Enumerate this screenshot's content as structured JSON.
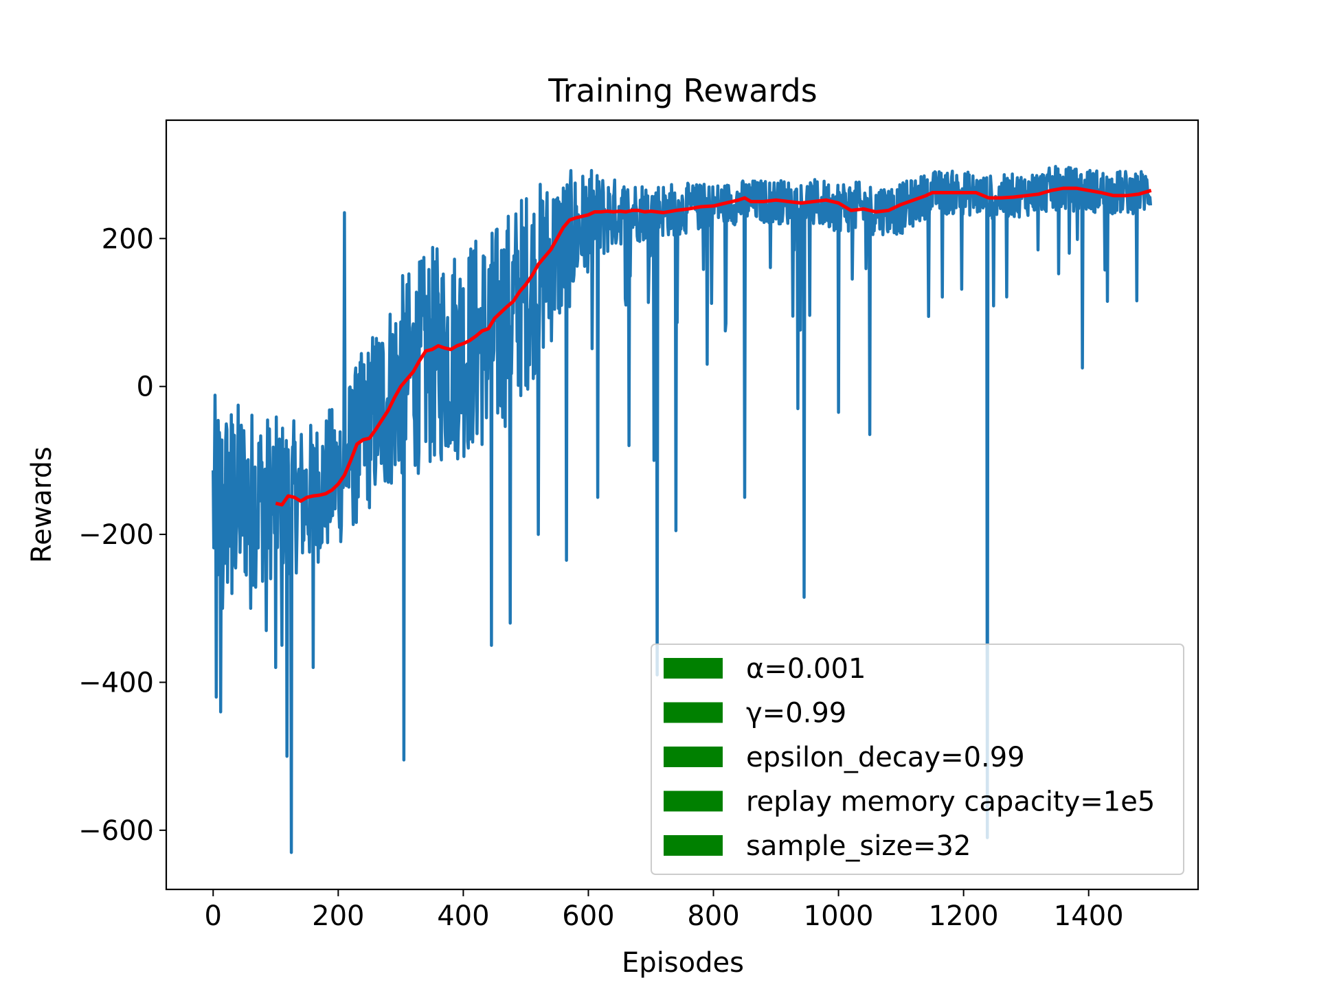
{
  "chart_data": {
    "type": "line",
    "title": "Training Rewards",
    "xlabel": "Episodes",
    "ylabel": "Rewards",
    "xlim": [
      -75,
      1575
    ],
    "ylim": [
      -680,
      360
    ],
    "xticks": [
      0,
      200,
      400,
      600,
      800,
      1000,
      1200,
      1400
    ],
    "yticks": [
      -600,
      -400,
      -200,
      0,
      200
    ],
    "ytick_labels": [
      "−600",
      "−400",
      "−200",
      "0",
      "200"
    ],
    "grid": false,
    "legend": {
      "placement": "lower-right",
      "entries": [
        {
          "label": "α=0.001",
          "color": "#008000"
        },
        {
          "label": "γ=0.99",
          "color": "#008000"
        },
        {
          "label": "epsilon_decay=0.99",
          "color": "#008000"
        },
        {
          "label": "replay memory capacity=1e5",
          "color": "#008000"
        },
        {
          "label": "sample_size=32",
          "color": "#008000"
        }
      ]
    },
    "series": [
      {
        "role": "raw episode rewards",
        "color": "#1f77b4",
        "episodes": 1500,
        "trend_x": [
          0,
          50,
          100,
          150,
          200,
          250,
          300,
          350,
          400,
          450,
          500,
          550,
          600,
          650,
          700,
          750,
          800,
          850,
          900,
          950,
          1000,
          1050,
          1100,
          1150,
          1200,
          1250,
          1300,
          1350,
          1400,
          1450,
          1500
        ],
        "trend_y": [
          -160,
          -150,
          -150,
          -150,
          -120,
          -50,
          10,
          40,
          50,
          70,
          130,
          180,
          225,
          235,
          238,
          240,
          245,
          250,
          250,
          248,
          245,
          240,
          240,
          262,
          262,
          255,
          260,
          268,
          265,
          262,
          265
        ],
        "spread": [
          150,
          130,
          110,
          100,
          100,
          120,
          140,
          150,
          150,
          150,
          140,
          110,
          70,
          45,
          40,
          35,
          30,
          30,
          30,
          32,
          35,
          35,
          35,
          30,
          30,
          30,
          30,
          30,
          30,
          30,
          30
        ],
        "outliers": [
          [
            5,
            -420
          ],
          [
            12,
            -440
          ],
          [
            15,
            -300
          ],
          [
            30,
            -280
          ],
          [
            60,
            -300
          ],
          [
            85,
            -330
          ],
          [
            100,
            -380
          ],
          [
            110,
            -350
          ],
          [
            118,
            -500
          ],
          [
            125,
            -630
          ],
          [
            160,
            -380
          ],
          [
            210,
            235
          ],
          [
            305,
            -505
          ],
          [
            445,
            -350
          ],
          [
            475,
            -320
          ],
          [
            520,
            -200
          ],
          [
            565,
            -235
          ],
          [
            615,
            -150
          ],
          [
            665,
            -80
          ],
          [
            705,
            -100
          ],
          [
            710,
            -390
          ],
          [
            740,
            -195
          ],
          [
            790,
            30
          ],
          [
            850,
            -150
          ],
          [
            935,
            -30
          ],
          [
            945,
            -285
          ],
          [
            1000,
            -35
          ],
          [
            1050,
            -65
          ],
          [
            1238,
            -610
          ],
          [
            1390,
            25
          ],
          [
            1430,
            115
          ]
        ]
      },
      {
        "role": "moving average",
        "color": "#ff0000",
        "x": [
          100,
          110,
          120,
          130,
          140,
          150,
          160,
          170,
          180,
          190,
          200,
          210,
          220,
          230,
          240,
          250,
          260,
          270,
          280,
          290,
          300,
          310,
          320,
          330,
          340,
          350,
          360,
          370,
          380,
          390,
          400,
          410,
          420,
          430,
          440,
          450,
          460,
          470,
          480,
          490,
          500,
          510,
          520,
          530,
          540,
          550,
          560,
          570,
          580,
          590,
          600,
          610,
          620,
          630,
          640,
          650,
          660,
          670,
          680,
          690,
          700,
          720,
          740,
          760,
          780,
          800,
          820,
          840,
          850,
          860,
          880,
          900,
          920,
          940,
          960,
          980,
          1000,
          1020,
          1040,
          1060,
          1080,
          1100,
          1120,
          1140,
          1150,
          1160,
          1180,
          1200,
          1220,
          1240,
          1260,
          1280,
          1300,
          1320,
          1340,
          1360,
          1380,
          1400,
          1420,
          1440,
          1460,
          1480,
          1500
        ],
        "y": [
          -158,
          -160,
          -148,
          -150,
          -155,
          -150,
          -148,
          -147,
          -145,
          -140,
          -132,
          -120,
          -100,
          -78,
          -72,
          -70,
          -58,
          -45,
          -32,
          -15,
          0,
          10,
          20,
          35,
          48,
          50,
          55,
          52,
          50,
          55,
          58,
          62,
          68,
          75,
          78,
          92,
          100,
          108,
          115,
          128,
          138,
          150,
          165,
          175,
          185,
          200,
          215,
          225,
          228,
          230,
          232,
          236,
          236,
          237,
          236,
          237,
          236,
          238,
          238,
          236,
          237,
          235,
          238,
          240,
          243,
          244,
          248,
          252,
          255,
          250,
          250,
          252,
          250,
          248,
          250,
          252,
          248,
          238,
          240,
          236,
          238,
          246,
          252,
          258,
          262,
          262,
          262,
          262,
          262,
          255,
          255,
          256,
          258,
          260,
          265,
          268,
          268,
          265,
          262,
          258,
          258,
          260,
          265
        ]
      }
    ]
  }
}
